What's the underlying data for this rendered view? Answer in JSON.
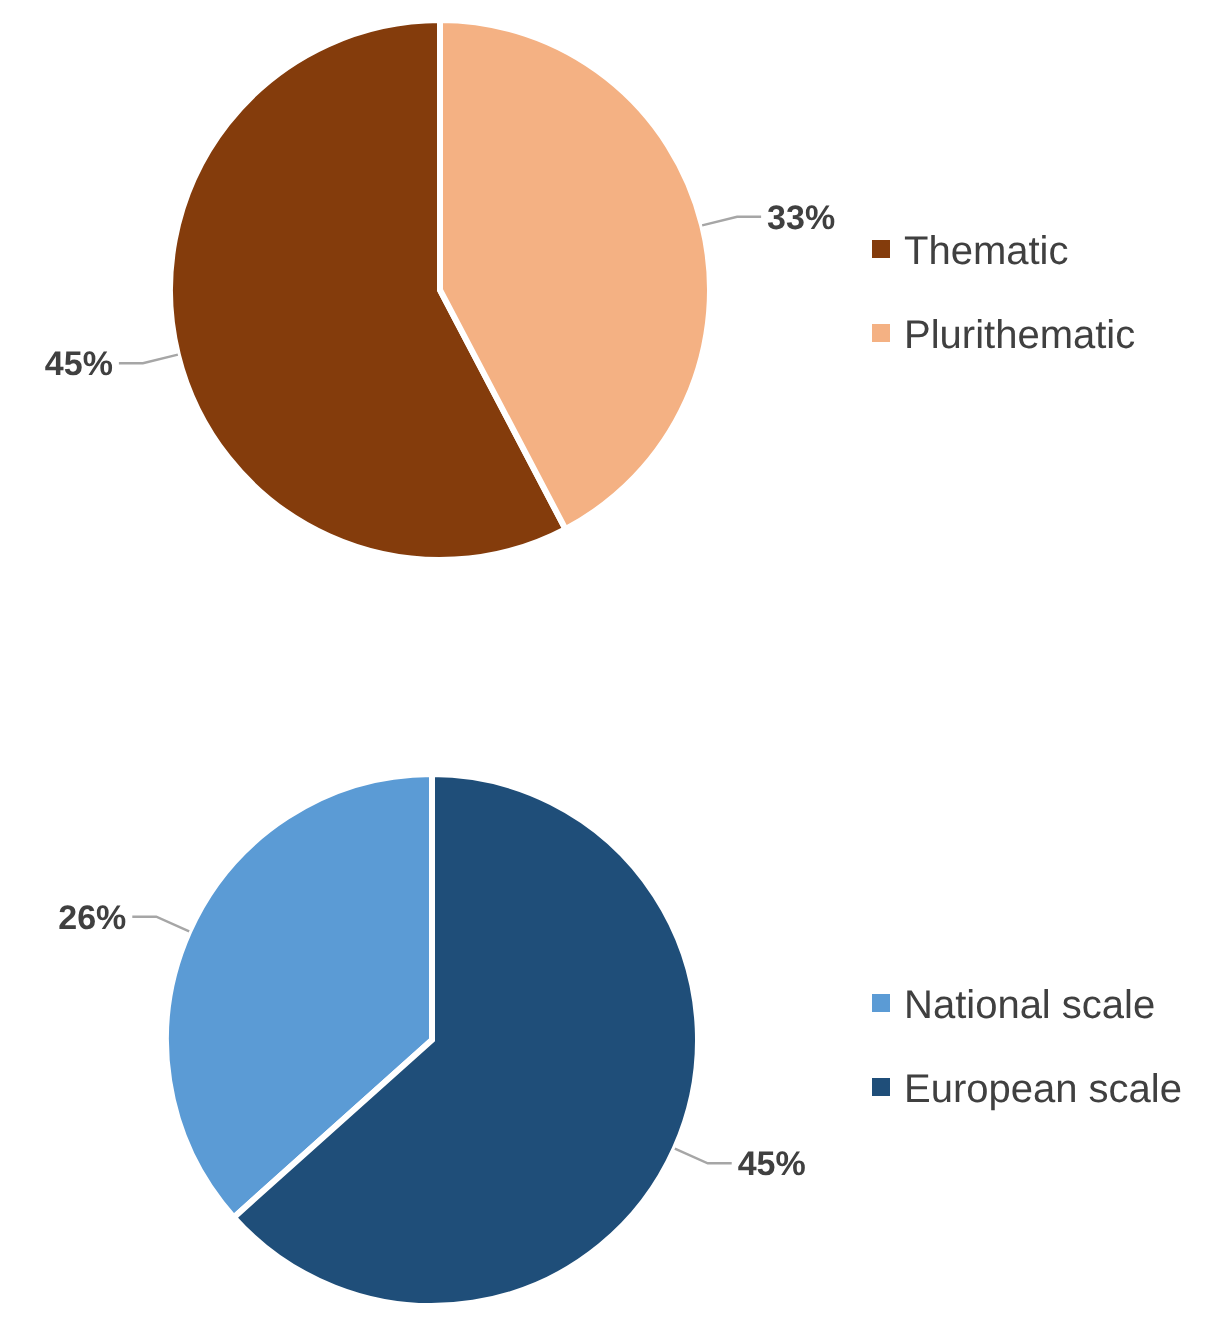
{
  "chart_data": [
    {
      "type": "pie",
      "categories": [
        "Thematic",
        "Plurithematic"
      ],
      "values": [
        45,
        33
      ],
      "colors": [
        "#843c0c",
        "#f4b183"
      ],
      "value_labels": [
        "45%",
        "33%"
      ],
      "legend": "right"
    },
    {
      "type": "pie",
      "categories": [
        "National scale",
        "European scale"
      ],
      "values": [
        26,
        45
      ],
      "colors": [
        "#5b9bd5",
        "#1f4e79"
      ],
      "value_labels": [
        "26%",
        "45%"
      ],
      "legend": "right"
    }
  ]
}
